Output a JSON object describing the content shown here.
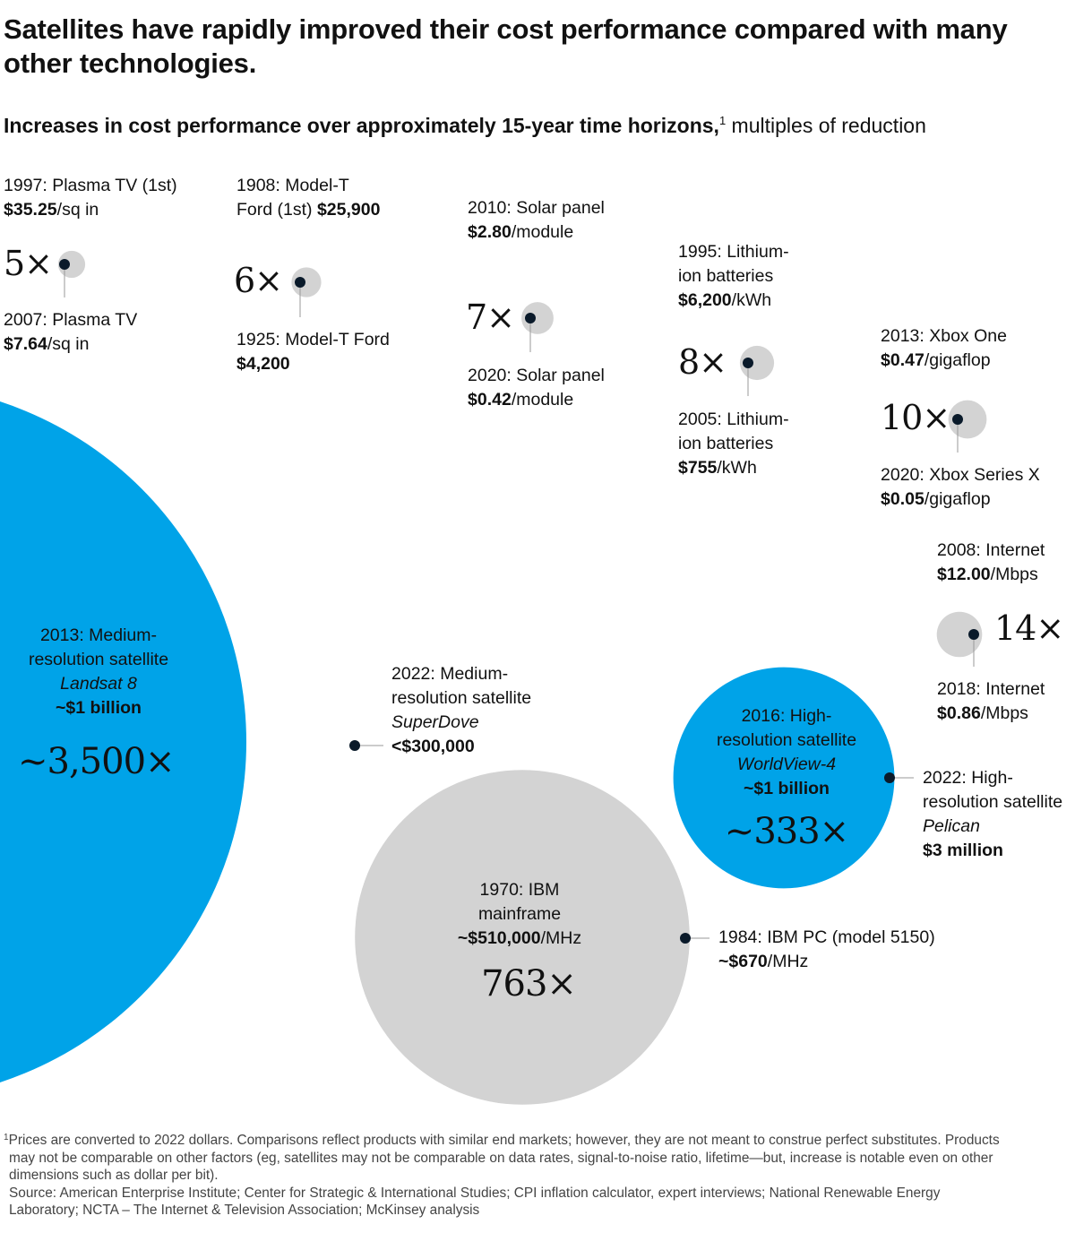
{
  "title": "Satellites have rapidly improved their cost performance compared with many other technologies.",
  "subtitle_bold": "Increases in cost performance over approximately 15-year time horizons,",
  "subtitle_sup": "1",
  "subtitle_rest": " multiples of reduction",
  "colors": {
    "satellite": "#00A3E8",
    "other": "#D3D3D3",
    "dot": "#0A1A2A",
    "leader": "#9A9A9A"
  },
  "chart_data": {
    "type": "bubble",
    "items": [
      {
        "id": "plasma",
        "multiple": 5,
        "multiple_label": "5×",
        "before_label": "1997: Plasma TV (1st)",
        "before_value": "$35.25",
        "before_unit": "/sq in",
        "after_label": "2007: Plasma TV",
        "after_value": "$7.64",
        "after_unit": "/sq in",
        "category": "other"
      },
      {
        "id": "modelt",
        "multiple": 6,
        "multiple_label": "6×",
        "before_label_1": "1908: Model-T",
        "before_label_2": "Ford (1st) ",
        "before_value": "$25,900",
        "after_label": "1925: Model-T Ford",
        "after_value": "$4,200",
        "category": "other"
      },
      {
        "id": "solar",
        "multiple": 7,
        "multiple_label": "7×",
        "before_label": "2010: Solar panel",
        "before_value": "$2.80",
        "before_unit": "/module",
        "after_label": "2020: Solar panel",
        "after_value": "$0.42",
        "after_unit": "/module",
        "category": "other"
      },
      {
        "id": "lithium",
        "multiple": 8,
        "multiple_label": "8×",
        "before_label_1": "1995: Lithium-",
        "before_label_2": "ion batteries",
        "before_value": "$6,200",
        "before_unit": "/kWh",
        "after_label_1": "2005: Lithium-",
        "after_label_2": "ion batteries",
        "after_value": "$755",
        "after_unit": "/kWh",
        "category": "other"
      },
      {
        "id": "xbox",
        "multiple": 10,
        "multiple_label": "10×",
        "before_label": "2013: Xbox One",
        "before_value": "$0.47",
        "before_unit": "/gigaflop",
        "after_label": "2020: Xbox Series X",
        "after_value": "$0.05",
        "after_unit": "/gigaflop",
        "category": "other"
      },
      {
        "id": "internet",
        "multiple": 14,
        "multiple_label": "14×",
        "before_label": "2008: Internet",
        "before_value": "$12.00",
        "before_unit": "/Mbps",
        "after_label": "2018: Internet",
        "after_value": "$0.86",
        "after_unit": "/Mbps",
        "category": "other"
      },
      {
        "id": "highres",
        "multiple": 333,
        "multiple_label": "~333×",
        "before_label_1": "2016: High-",
        "before_label_2": "resolution satellite",
        "before_name": "WorldView-4",
        "before_value": "~$1 billion",
        "after_label_1": "2022: High-",
        "after_label_2": "resolution satellite",
        "after_name": "Pelican",
        "after_value": "$3 million",
        "category": "satellite"
      },
      {
        "id": "ibm",
        "multiple": 763,
        "multiple_label": "763×",
        "before_label_1": "1970: IBM",
        "before_label_2": "mainframe",
        "before_value": "~$510,000",
        "before_unit": "/MHz",
        "after_label": "1984: IBM PC (model 5150)",
        "after_value": "~$670",
        "after_unit": "/MHz",
        "category": "other"
      },
      {
        "id": "mediumres",
        "multiple": 3500,
        "multiple_label": "~3,500×",
        "before_label_1": "2013: Medium-",
        "before_label_2": "resolution satellite",
        "before_name": "Landsat 8",
        "before_value": "~$1 billion",
        "after_label_1": "2022: Medium-",
        "after_label_2": "resolution satellite",
        "after_name": "SuperDove",
        "after_value": "<$300,000",
        "category": "satellite"
      }
    ]
  },
  "footnote_sup": "1",
  "footnote_1": "Prices are converted to 2022 dollars. Comparisons reflect products with similar end markets; however, they are not meant to construe perfect substitutes. Products",
  "footnote_2": "may not be comparable on other factors (eg, satellites may not be comparable on data rates, signal-to-noise ratio, lifetime—but, increase is notable even on other",
  "footnote_3": "dimensions such as dollar per bit).",
  "source_1": "Source: American Enterprise Institute; Center for Strategic & International Studies; CPI inflation calculator, expert interviews; National Renewable Energy",
  "source_2": "Laboratory; NCTA – The Internet & Television Association;  McKinsey analysis"
}
